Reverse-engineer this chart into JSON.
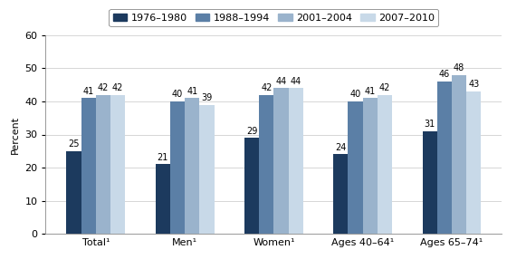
{
  "categories": [
    "Total¹",
    "Men¹",
    "Women¹",
    "Ages 40–64¹",
    "Ages 65–74¹"
  ],
  "series": {
    "1976–1980": [
      25,
      21,
      29,
      24,
      31
    ],
    "1988–1994": [
      41,
      40,
      42,
      40,
      46
    ],
    "2001–2004": [
      42,
      41,
      44,
      41,
      48
    ],
    "2007–2010": [
      42,
      39,
      44,
      42,
      43
    ]
  },
  "series_order": [
    "1976–1980",
    "1988–1994",
    "2001–2004",
    "2007–2010"
  ],
  "colors": [
    "#1c3a5e",
    "#5b7fa6",
    "#9ab3cc",
    "#c8d9e8"
  ],
  "ylabel": "Percent",
  "ylim": [
    0,
    60
  ],
  "yticks": [
    0,
    10,
    20,
    30,
    40,
    50,
    60
  ],
  "bar_width": 0.165,
  "label_fontsize": 8,
  "tick_fontsize": 8,
  "legend_fontsize": 8,
  "value_fontsize": 7,
  "background_color": "#ffffff",
  "grid_color": "#d0d0d0"
}
